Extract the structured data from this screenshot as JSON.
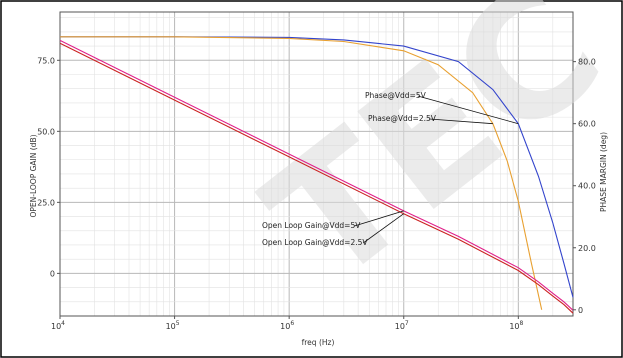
{
  "chart_data": {
    "type": "line",
    "xlabel": "freq (Hz)",
    "ylabel_left": "OPEN-LOOP GAIN (dB)",
    "ylabel_right": "PHASE MARGIN (deg)",
    "x_scale": "log",
    "xlim": [
      10000,
      300000000
    ],
    "ylim_left": [
      -15,
      92
    ],
    "ylim_right": [
      -2,
      96
    ],
    "x_ticks": [
      {
        "value": 10000,
        "label": "10",
        "exp": "4"
      },
      {
        "value": 100000,
        "label": "10",
        "exp": "5"
      },
      {
        "value": 1000000,
        "label": "10",
        "exp": "6"
      },
      {
        "value": 10000000,
        "label": "10",
        "exp": "7"
      },
      {
        "value": 100000000,
        "label": "10",
        "exp": "8"
      }
    ],
    "y_left_ticks": [
      {
        "value": 0,
        "label": "0"
      },
      {
        "value": 25,
        "label": "25.0"
      },
      {
        "value": 50,
        "label": "50.0"
      },
      {
        "value": 75,
        "label": "75.0"
      }
    ],
    "y_right_ticks": [
      {
        "value": 0,
        "label": "0"
      },
      {
        "value": 20,
        "label": "20.0"
      },
      {
        "value": 40,
        "label": "40.0"
      },
      {
        "value": 60,
        "label": "60.0"
      },
      {
        "value": 80,
        "label": "80.0"
      }
    ],
    "grid": true,
    "series": [
      {
        "name": "Phase@Vdd=5V",
        "axis": "right",
        "color": "#3344cc",
        "x": [
          10000,
          100000,
          1000000,
          3000000,
          10000000,
          30000000,
          60000000,
          100000000,
          150000000,
          200000000,
          250000000,
          300000000
        ],
        "y": [
          88,
          88,
          87.8,
          87,
          85,
          80,
          71,
          60,
          43,
          28,
          15,
          4
        ]
      },
      {
        "name": "Phase@Vdd=2.5V",
        "axis": "right",
        "color": "#e8a030",
        "x": [
          10000,
          100000,
          1000000,
          3000000,
          10000000,
          20000000,
          40000000,
          60000000,
          80000000,
          100000000,
          130000000,
          160000000
        ],
        "y": [
          88,
          88,
          87.5,
          86.5,
          83.5,
          79,
          70,
          60,
          48,
          35,
          15,
          0
        ]
      },
      {
        "name": "Open Loop Gain@Vdd=5V",
        "axis": "left",
        "color": "#e0208a",
        "x": [
          10000,
          100000,
          1000000,
          10000000,
          30000000,
          100000000,
          150000000,
          200000000,
          250000000,
          300000000
        ],
        "y": [
          82,
          62,
          42,
          22,
          13,
          2,
          -3,
          -7,
          -10,
          -13
        ]
      },
      {
        "name": "Open Loop Gain@Vdd=2.5V",
        "axis": "left",
        "color": "#cc2222",
        "x": [
          10000,
          100000,
          1000000,
          10000000,
          30000000,
          100000000,
          150000000,
          200000000,
          250000000,
          300000000
        ],
        "y": [
          81,
          61,
          41,
          21,
          12,
          1,
          -4,
          -8,
          -11,
          -14
        ]
      }
    ],
    "annotations": [
      {
        "text": "Phase@Vdd=5V",
        "series": 0,
        "point_x": 100000000,
        "point_y": 60
      },
      {
        "text": "Phase@Vdd=2.5V",
        "series": 1,
        "point_x": 60000000,
        "point_y": 60
      },
      {
        "text": "Open Loop Gain@Vdd=5V",
        "series": 2,
        "point_x": 10000000,
        "point_y": 22
      },
      {
        "text": "Open Loop Gain@Vdd=2.5V",
        "series": 3,
        "point_x": 10000000,
        "point_y": 21
      }
    ]
  },
  "watermark": {
    "text": "TEC"
  }
}
